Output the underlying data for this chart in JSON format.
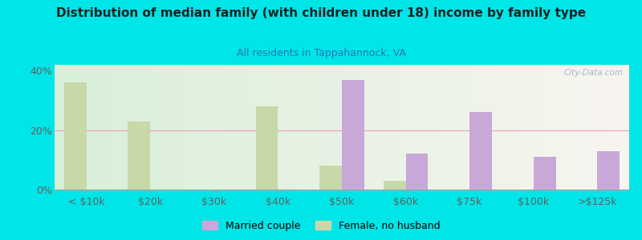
{
  "title": "Distribution of median family (with children under 18) income by family type",
  "subtitle": "All residents in Tappahannock, VA",
  "categories": [
    "< $10k",
    "$20k",
    "$30k",
    "$40k",
    "$50k",
    "$60k",
    "$75k",
    "$100k",
    ">$125k"
  ],
  "married_couple": [
    0,
    0,
    0,
    0,
    37,
    12,
    26,
    11,
    13
  ],
  "female_no_husband": [
    36,
    23,
    0,
    28,
    8,
    3,
    0,
    0,
    0
  ],
  "married_color": "#c8a8d8",
  "female_color": "#c8d8a8",
  "bg_outer": "#00e5e8",
  "bg_plot_left": "#d8efd8",
  "bg_plot_right": "#f8f5f0",
  "title_color": "#202020",
  "subtitle_color": "#2878b8",
  "axis_color": "#a0a0a0",
  "tick_color": "#606060",
  "gridline_color": "#f0a0c0",
  "ylim": [
    0,
    42
  ],
  "yticks": [
    0,
    20,
    40
  ],
  "bar_width": 0.35,
  "legend_married": "Married couple",
  "legend_female": "Female, no husband",
  "watermark": "City-Data.com"
}
